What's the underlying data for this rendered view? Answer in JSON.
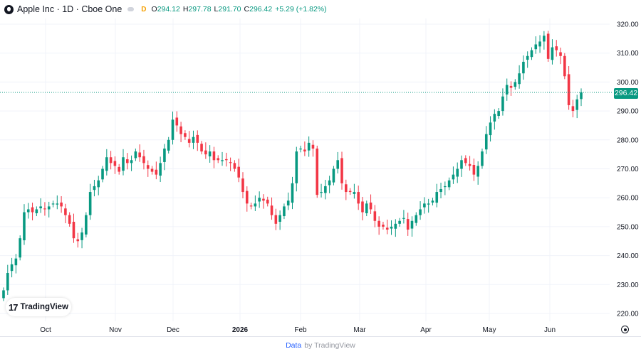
{
  "legend": {
    "symbol": "Apple Inc · 1D · Cboe One",
    "badge": "D",
    "ohlc": [
      {
        "key": "O",
        "value": "294.12"
      },
      {
        "key": "H",
        "value": "297.78"
      },
      {
        "key": "L",
        "value": "291.70"
      },
      {
        "key": "C",
        "value": "296.42"
      }
    ],
    "change": "+5.29 (+1.82%)"
  },
  "last_price_label": "296.42",
  "watermark": "TradingView",
  "footer": {
    "data_label": "Data",
    "by_label": "by TradingView"
  },
  "colors": {
    "up": "#089981",
    "down": "#f23645",
    "grid": "#f0f3fa",
    "price_line": "#089981"
  },
  "icons": {
    "symbol_logo": "apple-logo-icon",
    "settings": "gear-icon"
  },
  "chart_data": {
    "type": "candlestick",
    "symbol": "Apple Inc",
    "interval": "1D",
    "ylim": [
      217,
      324
    ],
    "yticks": [
      220,
      230,
      240,
      250,
      260,
      270,
      280,
      290,
      300,
      310,
      320
    ],
    "xticks": [
      "Oct",
      "Nov",
      "Dec",
      "2026",
      "Feb",
      "Mar",
      "Apr",
      "May",
      "Jun"
    ],
    "last_price": 296.42,
    "grid": true,
    "closes": [
      228,
      234,
      237,
      239,
      246,
      255,
      256,
      255,
      256,
      257,
      256,
      257,
      258,
      258,
      257,
      254,
      251,
      246,
      245,
      248,
      254,
      262,
      264,
      266,
      270,
      274,
      272,
      271,
      269,
      274,
      272,
      273,
      276,
      274,
      272,
      270,
      269,
      268,
      272,
      277,
      280,
      287,
      285,
      282,
      281,
      279,
      281,
      279,
      276,
      275,
      276,
      273,
      273,
      273,
      273,
      272,
      270,
      267,
      262,
      258,
      257,
      258,
      260,
      259,
      258,
      254,
      251,
      254,
      257,
      259,
      265,
      276,
      277,
      276,
      279,
      277,
      261,
      262,
      264,
      266,
      270,
      273,
      265,
      262,
      262,
      262,
      258,
      255,
      258,
      256,
      252,
      250,
      250,
      249,
      250,
      251,
      252,
      253,
      249,
      252,
      254,
      256,
      258,
      258,
      259,
      262,
      263,
      264,
      266,
      268,
      270,
      273,
      272,
      271,
      268,
      271,
      276,
      282,
      286,
      289,
      290,
      295,
      299,
      298,
      300,
      303,
      307,
      309,
      311,
      313,
      314,
      316,
      308,
      312,
      311,
      309,
      302,
      292,
      290,
      294,
      296.42
    ]
  }
}
